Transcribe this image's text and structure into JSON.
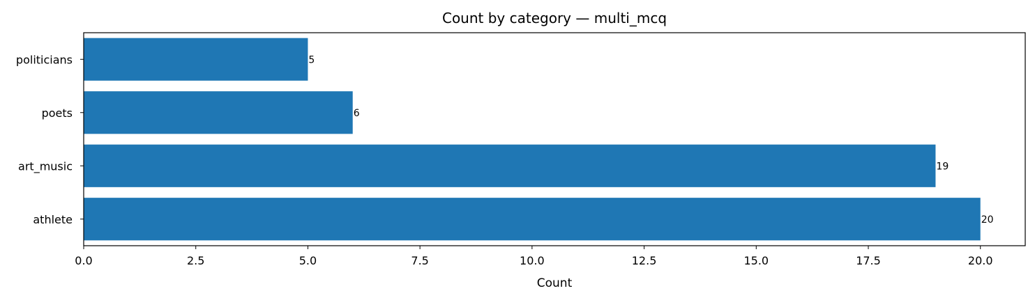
{
  "chart_data": {
    "type": "bar",
    "orientation": "horizontal",
    "title": "Count by category — multi_mcq",
    "xlabel": "Count",
    "ylabel": "",
    "categories": [
      "athlete",
      "art_music",
      "poets",
      "politicians"
    ],
    "values": [
      20,
      19,
      6,
      5
    ],
    "xlim": [
      0,
      21
    ],
    "xticks": [
      "0.0",
      "2.5",
      "5.0",
      "7.5",
      "10.0",
      "12.5",
      "15.0",
      "17.5",
      "20.0"
    ],
    "bar_color": "#1f77b4",
    "grid": false,
    "legend": "none"
  }
}
